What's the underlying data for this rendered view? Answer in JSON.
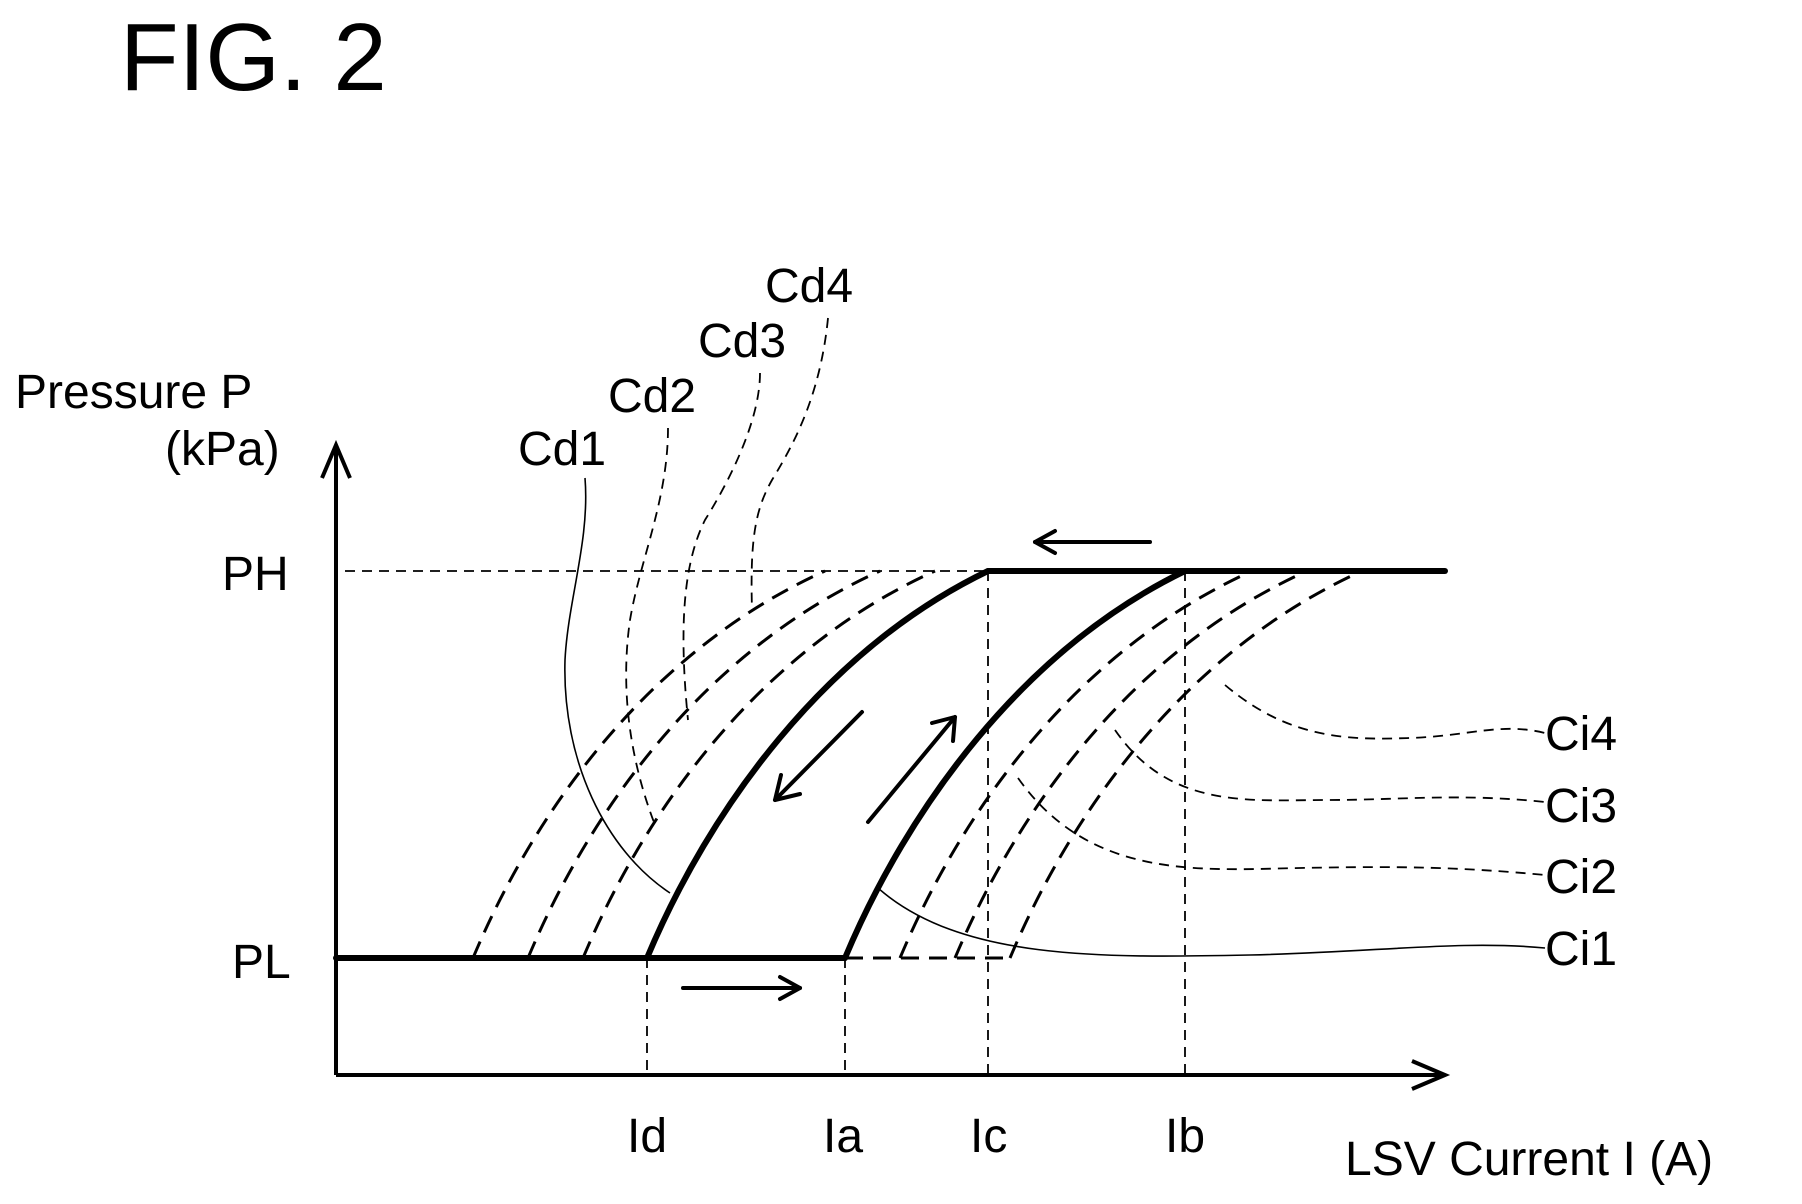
{
  "figure": {
    "title": "FIG. 2"
  },
  "axes": {
    "y_label_line1": "Pressure P",
    "y_label_line2": "(kPa)",
    "x_label": "LSV Current I (A)",
    "y_ticks": [
      "PH",
      "PL"
    ],
    "x_ticks": [
      "Id",
      "Ia",
      "Ic",
      "Ib"
    ]
  },
  "curves": {
    "decreasing": [
      "Cd1",
      "Cd2",
      "Cd3",
      "Cd4"
    ],
    "increasing": [
      "Ci1",
      "Ci2",
      "Ci3",
      "Ci4"
    ]
  }
}
